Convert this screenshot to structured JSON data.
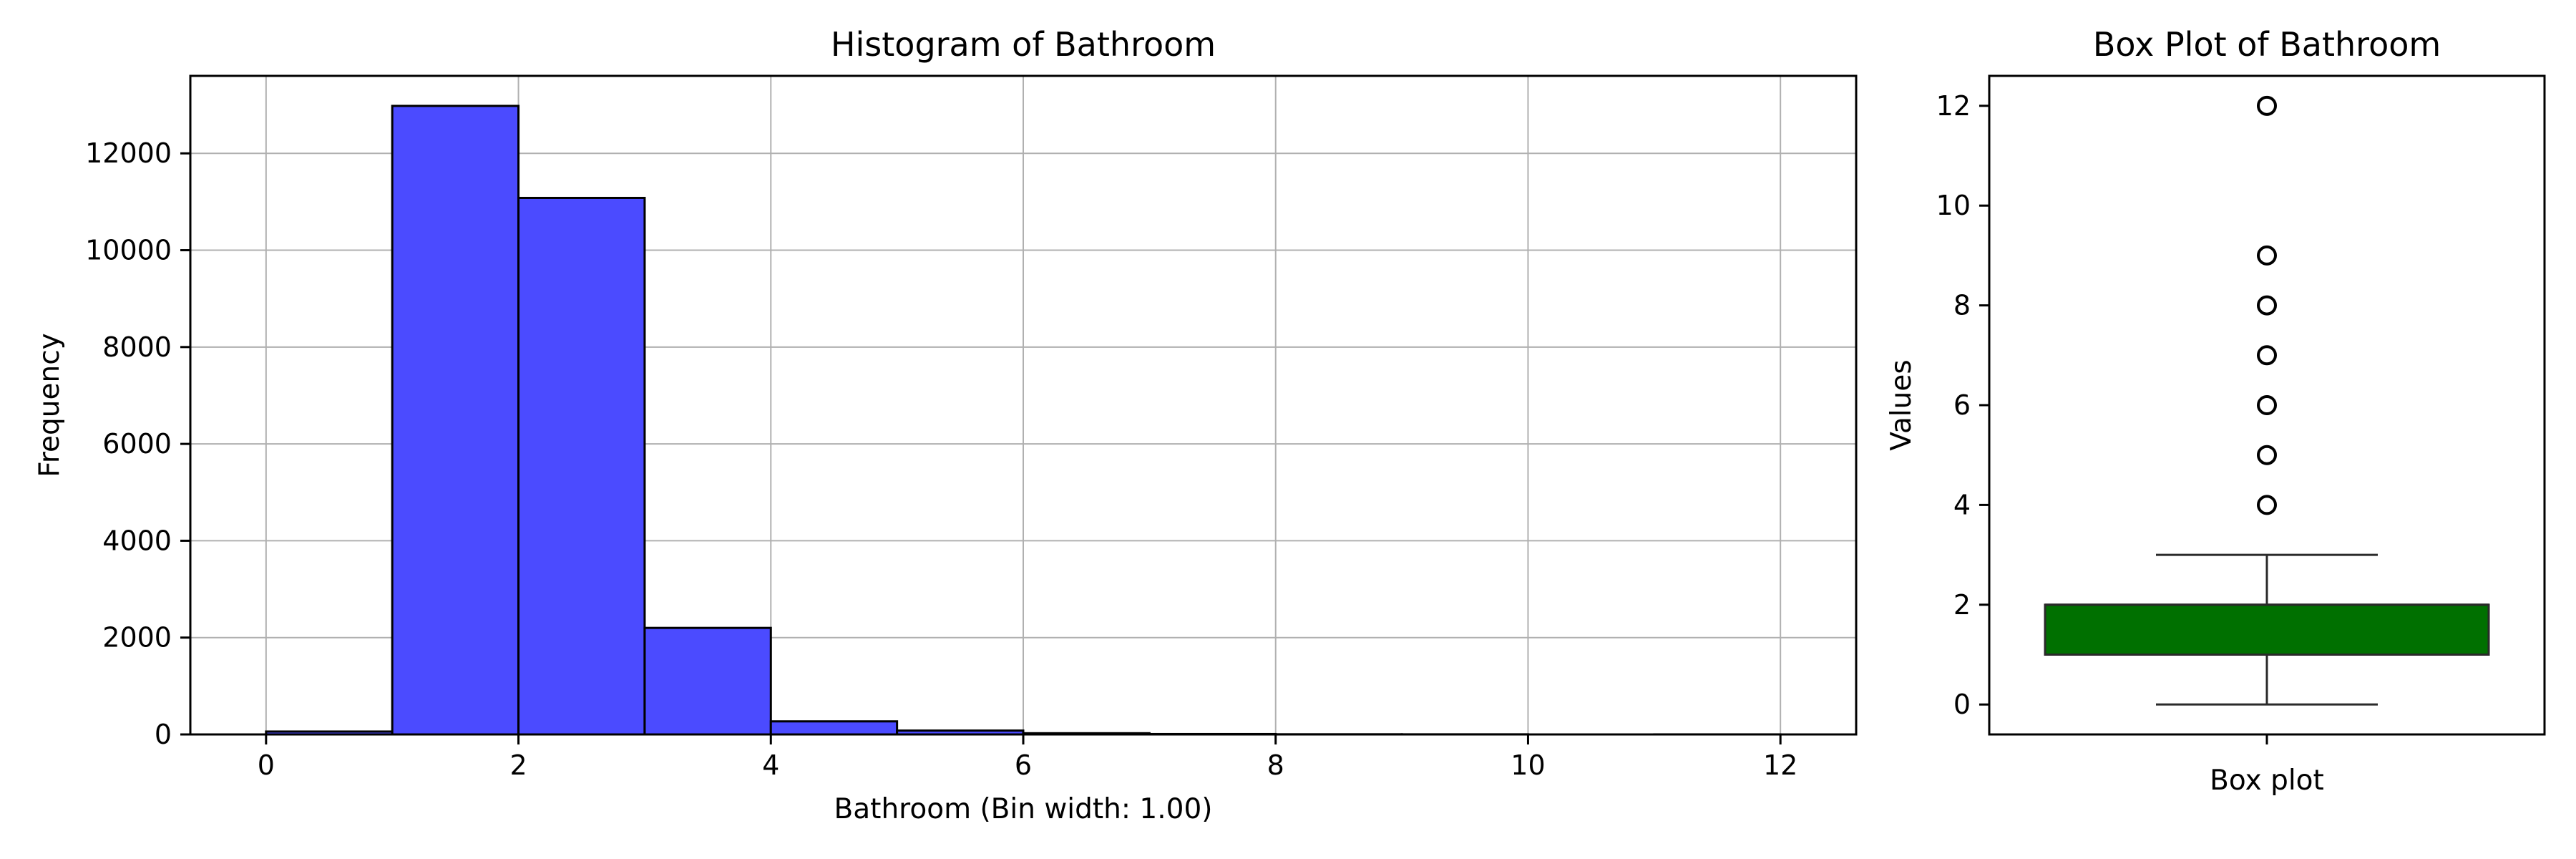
{
  "chart_data": [
    {
      "type": "bar",
      "title": "Histogram of Bathroom",
      "xlabel": "Bathroom (Bin width: 1.00)",
      "ylabel": "Frequency",
      "xlim": [
        -0.6,
        12.6
      ],
      "ylim": [
        0,
        13600
      ],
      "bin_width": 1,
      "bins": [
        [
          0,
          1
        ],
        [
          1,
          2
        ],
        [
          2,
          3
        ],
        [
          3,
          4
        ],
        [
          4,
          5
        ],
        [
          5,
          6
        ],
        [
          6,
          7
        ],
        [
          7,
          8
        ],
        [
          8,
          9
        ],
        [
          9,
          10
        ],
        [
          10,
          11
        ],
        [
          11,
          12
        ]
      ],
      "values": [
        60,
        12980,
        11080,
        2200,
        270,
        80,
        25,
        8,
        3,
        2,
        0,
        1
      ],
      "xticks": [
        0,
        2,
        4,
        6,
        8,
        10,
        12
      ],
      "yticks": [
        0,
        2000,
        4000,
        6000,
        8000,
        10000,
        12000
      ],
      "grid": true,
      "colors": {
        "bar_fill": "#4b4bff",
        "bar_edge": "#000000",
        "grid": "#b0b0b0"
      }
    },
    {
      "type": "box",
      "title": "Box Plot of Bathroom",
      "xlabel": "Box plot",
      "ylabel": "Values",
      "ylim": [
        -0.6,
        12.6
      ],
      "yticks": [
        0,
        2,
        4,
        6,
        8,
        10,
        12
      ],
      "whisker_low": 0,
      "q1": 1,
      "median": 2,
      "q3": 2,
      "whisker_high": 3,
      "outliers": [
        4,
        5,
        6,
        7,
        8,
        9,
        12
      ],
      "grid": false,
      "colors": {
        "box_fill": "#007000",
        "box_edge": "#2a2a2a"
      }
    }
  ]
}
